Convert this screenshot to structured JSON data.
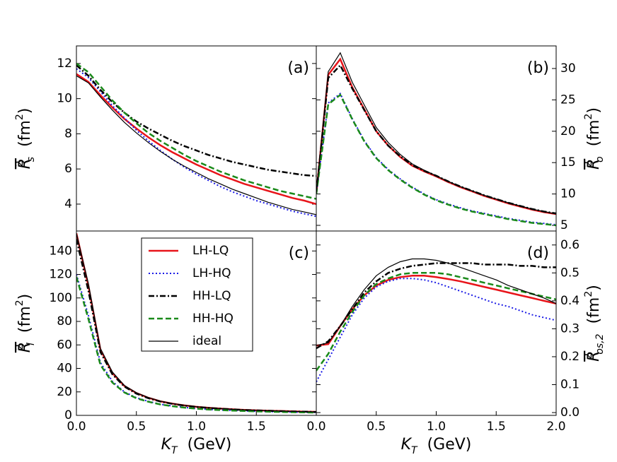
{
  "chart_data": [
    {
      "type": "line",
      "panel_label": "(a)",
      "yaxis_side": "left",
      "ylabel": {
        "base": "R",
        "sup": "2",
        "sub": "s",
        "unit": "(fm",
        "unit_sup": "2",
        "unit_end": ")"
      },
      "xlim": [
        0,
        2
      ],
      "ylim": [
        2.47,
        13
      ],
      "yticks": [
        4,
        6,
        8,
        10,
        12
      ],
      "x": [
        0,
        0.1,
        0.2,
        0.3,
        0.4,
        0.5,
        0.6,
        0.7,
        0.8,
        0.9,
        1.0,
        1.1,
        1.2,
        1.3,
        1.4,
        1.5,
        1.6,
        1.7,
        1.8,
        1.9,
        2.0
      ],
      "series": [
        {
          "name": "LH-LQ",
          "color": "#e8141a",
          "dash": "solid",
          "width": 2.5,
          "values": [
            11.4,
            10.95,
            10.2,
            9.5,
            8.85,
            8.3,
            7.8,
            7.35,
            6.95,
            6.6,
            6.25,
            5.95,
            5.65,
            5.4,
            5.15,
            4.95,
            4.75,
            4.55,
            4.35,
            4.2,
            4.0
          ]
        },
        {
          "name": "LH-HQ",
          "color": "#1a1ae6",
          "dash": "dotted",
          "width": 2,
          "values": [
            11.7,
            11.2,
            10.4,
            9.6,
            8.9,
            8.2,
            7.6,
            7.05,
            6.55,
            6.1,
            5.7,
            5.35,
            5.0,
            4.7,
            4.45,
            4.2,
            4.0,
            3.8,
            3.6,
            3.45,
            3.3
          ]
        },
        {
          "name": "HH-LQ",
          "color": "#000000",
          "dash": "dashdot",
          "width": 2.5,
          "values": [
            11.9,
            11.3,
            10.5,
            9.8,
            9.2,
            8.7,
            8.3,
            7.95,
            7.6,
            7.3,
            7.05,
            6.8,
            6.6,
            6.4,
            6.25,
            6.1,
            5.95,
            5.85,
            5.75,
            5.65,
            5.6
          ]
        },
        {
          "name": "HH-HQ",
          "color": "#1a8a1a",
          "dash": "dashed",
          "width": 2.5,
          "values": [
            12.0,
            11.5,
            10.7,
            9.9,
            9.2,
            8.6,
            8.05,
            7.6,
            7.2,
            6.8,
            6.45,
            6.15,
            5.85,
            5.6,
            5.35,
            5.15,
            4.95,
            4.75,
            4.6,
            4.45,
            4.3
          ]
        },
        {
          "name": "ideal",
          "color": "#000000",
          "dash": "solid",
          "width": 1.2,
          "values": [
            11.3,
            10.9,
            10.1,
            9.35,
            8.65,
            8.05,
            7.5,
            7.0,
            6.55,
            6.15,
            5.8,
            5.45,
            5.15,
            4.85,
            4.6,
            4.35,
            4.1,
            3.9,
            3.7,
            3.55,
            3.4
          ]
        }
      ]
    },
    {
      "type": "line",
      "panel_label": "(b)",
      "yaxis_side": "right",
      "ylabel": {
        "base": "R",
        "sup": "2",
        "sub": "o",
        "unit": "(fm",
        "unit_sup": "2",
        "unit_end": ")"
      },
      "xlim": [
        0,
        2
      ],
      "ylim": [
        4.1,
        33.6
      ],
      "yticks": [
        5,
        10,
        15,
        20,
        25,
        30
      ],
      "x": [
        0,
        0.1,
        0.2,
        0.3,
        0.4,
        0.5,
        0.6,
        0.7,
        0.8,
        0.9,
        1.0,
        1.1,
        1.2,
        1.3,
        1.4,
        1.5,
        1.6,
        1.7,
        1.8,
        1.9,
        2.0
      ],
      "series": [
        {
          "name": "LH-LQ",
          "color": "#e8141a",
          "dash": "solid",
          "width": 2.5,
          "values": [
            10,
            29,
            31.5,
            27,
            23.5,
            20,
            17.7,
            15.9,
            14.5,
            13.6,
            12.8,
            11.9,
            11.1,
            10.4,
            9.7,
            9.1,
            8.5,
            8.0,
            7.5,
            7.1,
            6.8
          ]
        },
        {
          "name": "LH-HQ",
          "color": "#1a1ae6",
          "dash": "dotted",
          "width": 2,
          "values": [
            10,
            24.5,
            26,
            22,
            18.5,
            15.8,
            13.9,
            12.4,
            11.1,
            10.0,
            9.1,
            8.4,
            7.8,
            7.3,
            6.9,
            6.5,
            6.1,
            5.8,
            5.5,
            5.3,
            5.1
          ]
        },
        {
          "name": "HH-LQ",
          "color": "#000000",
          "dash": "dashdot",
          "width": 2.5,
          "values": [
            10,
            28.5,
            30.5,
            26.8,
            23.4,
            20,
            17.7,
            16.0,
            14.6,
            13.7,
            12.9,
            12.0,
            11.2,
            10.5,
            9.8,
            9.2,
            8.6,
            8.1,
            7.6,
            7.2,
            6.9
          ]
        },
        {
          "name": "HH-HQ",
          "color": "#1a8a1a",
          "dash": "dashed",
          "width": 2.5,
          "values": [
            10,
            24.3,
            25.8,
            21.9,
            18.4,
            15.7,
            13.8,
            12.3,
            11.0,
            9.9,
            9.0,
            8.3,
            7.7,
            7.2,
            6.8,
            6.4,
            6.0,
            5.7,
            5.4,
            5.2,
            5.0
          ]
        },
        {
          "name": "ideal",
          "color": "#000000",
          "dash": "solid",
          "width": 1.2,
          "values": [
            10,
            29.5,
            32.5,
            27.8,
            24.2,
            20.6,
            18.2,
            16.3,
            14.8,
            13.8,
            12.9,
            12.0,
            11.2,
            10.5,
            9.8,
            9.2,
            8.6,
            8.1,
            7.6,
            7.2,
            6.8
          ]
        }
      ]
    },
    {
      "type": "line",
      "panel_label": "(c)",
      "yaxis_side": "left",
      "legend": "upper center",
      "ylabel": {
        "base": "R",
        "sup": "2",
        "sub": "l",
        "unit": "(fm",
        "unit_sup": "2",
        "unit_end": ")"
      },
      "xlabel": {
        "base": "K",
        "sub": "T",
        "unit": "(GeV)"
      },
      "xlim": [
        0,
        2
      ],
      "ylim": [
        0,
        157
      ],
      "yticks": [
        0,
        20,
        40,
        60,
        80,
        100,
        120,
        140
      ],
      "xticks": [
        {
          "value": 0,
          "label": "0.0"
        },
        0.5,
        {
          "value": 1,
          "label": "1.0"
        },
        1.5
      ],
      "x": [
        0,
        0.1,
        0.2,
        0.3,
        0.4,
        0.5,
        0.6,
        0.7,
        0.8,
        0.9,
        1.0,
        1.1,
        1.2,
        1.3,
        1.4,
        1.5,
        1.6,
        1.7,
        1.8,
        1.9,
        2.0
      ],
      "series": [
        {
          "name": "LH-LQ",
          "color": "#e8141a",
          "dash": "solid",
          "width": 2.5,
          "values": [
            155,
            110,
            56,
            36,
            25,
            19,
            15,
            12,
            10,
            8.5,
            7.3,
            6.5,
            5.8,
            5.2,
            4.7,
            4.3,
            4.0,
            3.7,
            3.4,
            3.2,
            3.0
          ]
        },
        {
          "name": "LH-HQ",
          "color": "#1a1ae6",
          "dash": "dotted",
          "width": 2,
          "values": [
            120,
            85,
            45,
            29,
            20,
            15,
            12,
            9.5,
            8,
            6.8,
            5.8,
            5.1,
            4.6,
            4.2,
            3.8,
            3.5,
            3.2,
            3.0,
            2.8,
            2.6,
            2.5
          ]
        },
        {
          "name": "HH-LQ",
          "color": "#000000",
          "dash": "dashdot",
          "width": 2.5,
          "values": [
            150,
            106,
            54,
            35,
            24.5,
            18.5,
            14.6,
            11.8,
            9.8,
            8.3,
            7.2,
            6.4,
            5.7,
            5.1,
            4.6,
            4.2,
            3.9,
            3.6,
            3.3,
            3.1,
            2.9
          ]
        },
        {
          "name": "HH-HQ",
          "color": "#1a8a1a",
          "dash": "dashed",
          "width": 2.5,
          "values": [
            118,
            82,
            43,
            28,
            19.5,
            14.6,
            11.6,
            9.3,
            7.8,
            6.6,
            5.7,
            5.0,
            4.5,
            4.1,
            3.7,
            3.4,
            3.1,
            2.9,
            2.7,
            2.5,
            2.4
          ]
        },
        {
          "name": "ideal",
          "color": "#000000",
          "dash": "solid",
          "width": 1.2,
          "values": [
            155,
            112,
            57,
            37,
            25.5,
            19.3,
            15.2,
            12.2,
            10.1,
            8.6,
            7.4,
            6.5,
            5.8,
            5.2,
            4.7,
            4.3,
            4.0,
            3.7,
            3.4,
            3.2,
            3.0
          ]
        }
      ]
    },
    {
      "type": "line",
      "panel_label": "(d)",
      "yaxis_side": "right",
      "ylabel": {
        "base": "R",
        "sup": "2",
        "sub": "os,2",
        "unit": "(fm",
        "unit_sup": "2",
        "unit_end": ")"
      },
      "xlabel": {
        "base": "K",
        "sub": "T",
        "unit": "(GeV)"
      },
      "xlim": [
        0,
        2
      ],
      "ylim": [
        -0.01,
        0.65
      ],
      "yticks": [
        {
          "value": 0,
          "label": "0.0"
        },
        0.1,
        0.2,
        0.3,
        0.4,
        0.5,
        0.6
      ],
      "xticks": [
        {
          "value": 0,
          "label": "0.0"
        },
        0.5,
        {
          "value": 1,
          "label": "1.0"
        },
        1.5,
        {
          "value": 2,
          "label": "2.0"
        }
      ],
      "x": [
        0,
        0.1,
        0.2,
        0.3,
        0.4,
        0.5,
        0.6,
        0.7,
        0.8,
        0.9,
        1.0,
        1.1,
        1.2,
        1.3,
        1.4,
        1.5,
        1.6,
        1.7,
        1.8,
        1.9,
        2.0
      ],
      "series": [
        {
          "name": "LH-LQ",
          "color": "#e8141a",
          "dash": "solid",
          "width": 2.5,
          "values": [
            0.24,
            0.245,
            0.31,
            0.37,
            0.42,
            0.455,
            0.475,
            0.485,
            0.49,
            0.49,
            0.485,
            0.478,
            0.47,
            0.46,
            0.45,
            0.44,
            0.43,
            0.42,
            0.41,
            0.4,
            0.39
          ]
        },
        {
          "name": "LH-HQ",
          "color": "#1a1ae6",
          "dash": "dotted",
          "width": 2,
          "values": [
            0.11,
            0.19,
            0.27,
            0.35,
            0.41,
            0.45,
            0.47,
            0.48,
            0.48,
            0.475,
            0.465,
            0.45,
            0.435,
            0.42,
            0.405,
            0.39,
            0.38,
            0.365,
            0.35,
            0.34,
            0.33
          ]
        },
        {
          "name": "HH-LQ",
          "color": "#000000",
          "dash": "dashdot",
          "width": 2.5,
          "values": [
            0.23,
            0.255,
            0.31,
            0.37,
            0.43,
            0.47,
            0.5,
            0.515,
            0.525,
            0.53,
            0.535,
            0.535,
            0.535,
            0.535,
            0.53,
            0.53,
            0.53,
            0.525,
            0.525,
            0.52,
            0.52
          ]
        },
        {
          "name": "HH-HQ",
          "color": "#1a8a1a",
          "dash": "dashed",
          "width": 2.5,
          "values": [
            0.15,
            0.21,
            0.29,
            0.36,
            0.42,
            0.46,
            0.48,
            0.495,
            0.5,
            0.5,
            0.5,
            0.495,
            0.485,
            0.475,
            0.465,
            0.455,
            0.445,
            0.435,
            0.425,
            0.415,
            0.405
          ]
        },
        {
          "name": "ideal",
          "color": "#000000",
          "dash": "solid",
          "width": 1.2,
          "values": [
            0.24,
            0.25,
            0.31,
            0.38,
            0.44,
            0.49,
            0.52,
            0.54,
            0.55,
            0.55,
            0.545,
            0.535,
            0.52,
            0.505,
            0.49,
            0.475,
            0.455,
            0.44,
            0.425,
            0.41,
            0.39
          ]
        }
      ]
    }
  ]
}
